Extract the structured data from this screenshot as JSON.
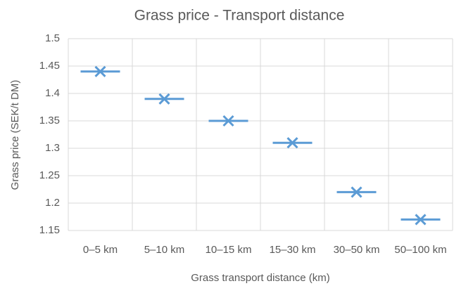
{
  "chart_data": {
    "type": "scatter",
    "title": "Grass price - Transport distance",
    "x_label": "Grass transport distance (km)",
    "y_label": "Grass price (SEK/t DM)",
    "categories": [
      "0–5 km",
      "5–10 km",
      "10–15 km",
      "15–30 km",
      "30–50 km",
      "50–100 km"
    ],
    "values": [
      1.44,
      1.39,
      1.35,
      1.31,
      1.22,
      1.17
    ],
    "color": "#5b9bd5",
    "ylim": [
      1.15,
      1.5
    ],
    "yticks": [
      1.15,
      1.2,
      1.25,
      1.3,
      1.35,
      1.4,
      1.45,
      1.5
    ],
    "grid": true
  }
}
